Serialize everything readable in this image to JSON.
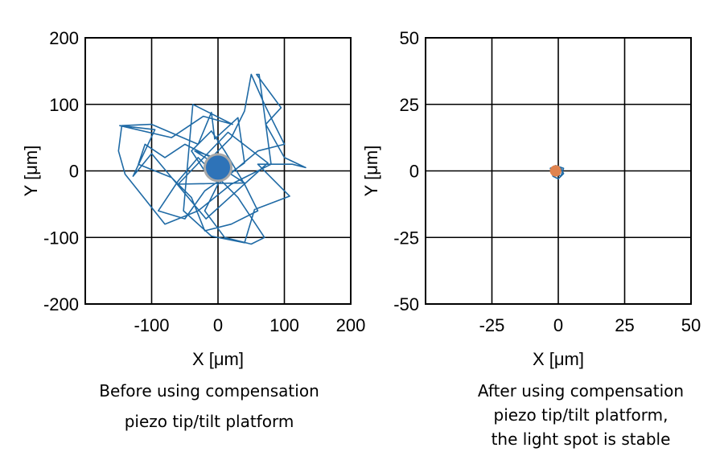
{
  "chart_data": [
    {
      "type": "scatter",
      "title": "",
      "xlabel": "X [μm]",
      "ylabel": "Y [μm]",
      "xlim": [
        -200,
        200
      ],
      "ylim": [
        -200,
        200
      ],
      "xticks": [
        -100,
        0,
        100,
        200
      ],
      "xtick_labels": [
        "-100",
        "0",
        "100",
        "200"
      ],
      "yticks": [
        200,
        100,
        0,
        -100,
        -200
      ],
      "ytick_labels": [
        "200",
        "100",
        "0",
        "-100",
        "-200"
      ],
      "grid": true,
      "legend": "none",
      "caption": [
        "Before using compensation",
        "piezo tip/tilt platform"
      ],
      "series": [
        {
          "kind": "trajectory",
          "color": "#1f6aa5",
          "points": [
            [
              0,
              0
            ],
            [
              20,
              12
            ],
            [
              -35,
              30
            ],
            [
              40,
              -18
            ],
            [
              -60,
              -20
            ],
            [
              15,
              58
            ],
            [
              75,
              12
            ],
            [
              -18,
              -72
            ],
            [
              -100,
              26
            ],
            [
              -128,
              -8
            ],
            [
              -95,
              62
            ],
            [
              -148,
              68
            ],
            [
              -70,
              50
            ],
            [
              -22,
              82
            ],
            [
              22,
              70
            ],
            [
              -38,
              100
            ],
            [
              -52,
              -60
            ],
            [
              -10,
              -98
            ],
            [
              40,
              -108
            ],
            [
              55,
              -58
            ],
            [
              108,
              -38
            ],
            [
              60,
              10
            ],
            [
              112,
              10
            ],
            [
              132,
              5
            ],
            [
              100,
              20
            ],
            [
              72,
              70
            ],
            [
              95,
              95
            ],
            [
              58,
              145
            ],
            [
              62,
              145
            ],
            [
              80,
              10
            ],
            [
              20,
              -20
            ],
            [
              -30,
              -60
            ],
            [
              -80,
              -80
            ],
            [
              -120,
              -30
            ],
            [
              -140,
              -5
            ],
            [
              -150,
              30
            ],
            [
              -145,
              68
            ],
            [
              -100,
              70
            ],
            [
              -30,
              40
            ],
            [
              -10,
              88
            ],
            [
              -5,
              48
            ],
            [
              30,
              80
            ],
            [
              40,
              12
            ],
            [
              -20,
              -30
            ],
            [
              -50,
              -72
            ],
            [
              -90,
              -60
            ],
            [
              -60,
              -15
            ],
            [
              -30,
              20
            ],
            [
              30,
              -40
            ],
            [
              70,
              -100
            ],
            [
              50,
              -110
            ],
            [
              10,
              -100
            ],
            [
              -20,
              -60
            ],
            [
              0,
              -20
            ],
            [
              60,
              30
            ],
            [
              100,
              40
            ],
            [
              70,
              100
            ],
            [
              50,
              145
            ],
            [
              40,
              90
            ],
            [
              20,
              50
            ],
            [
              -10,
              20
            ],
            [
              -50,
              40
            ],
            [
              -80,
              20
            ],
            [
              -110,
              40
            ],
            [
              -120,
              10
            ],
            [
              -70,
              -10
            ],
            [
              -40,
              -40
            ],
            [
              -20,
              -90
            ],
            [
              20,
              -80
            ],
            [
              60,
              -60
            ],
            [
              40,
              -20
            ],
            [
              10,
              30
            ],
            [
              -10,
              60
            ],
            [
              -40,
              30
            ],
            [
              -20,
              0
            ],
            [
              5,
              -5
            ]
          ],
          "marker": {
            "x": 0,
            "y": 5,
            "radius": 20,
            "color": "#2e73b8",
            "ring_color": "#a8a8a8"
          }
        }
      ]
    },
    {
      "type": "scatter",
      "title": "",
      "xlabel": "X [μm]",
      "ylabel": "Y [μm]",
      "xlim": [
        -50,
        50
      ],
      "ylim": [
        -50,
        50
      ],
      "xticks": [
        -25,
        0,
        25,
        50
      ],
      "xtick_labels": [
        "-25",
        "0",
        "25",
        "50"
      ],
      "yticks": [
        50,
        25,
        0,
        -25,
        -50
      ],
      "ytick_labels": [
        "50",
        "25",
        "0",
        "-25",
        "-50"
      ],
      "grid": true,
      "legend": "none",
      "caption": [
        "After using compensation",
        "piezo tip/tilt platform,",
        "the light spot is stable"
      ],
      "series": [
        {
          "kind": "trajectory",
          "color": "#1f6aa5",
          "points": [
            [
              -2,
              0
            ],
            [
              -1,
              2
            ],
            [
              1,
              1
            ],
            [
              2,
              -1
            ],
            [
              0,
              -3
            ],
            [
              -2,
              -2
            ],
            [
              -3,
              1
            ],
            [
              -1,
              2
            ],
            [
              2,
              1
            ],
            [
              1,
              -2
            ],
            [
              -1,
              -1
            ],
            [
              0,
              0
            ]
          ],
          "marker": {
            "x": -1,
            "y": 0,
            "radius": 2,
            "color": "#e0834e",
            "ring_color": "#e0834e"
          }
        }
      ]
    }
  ]
}
